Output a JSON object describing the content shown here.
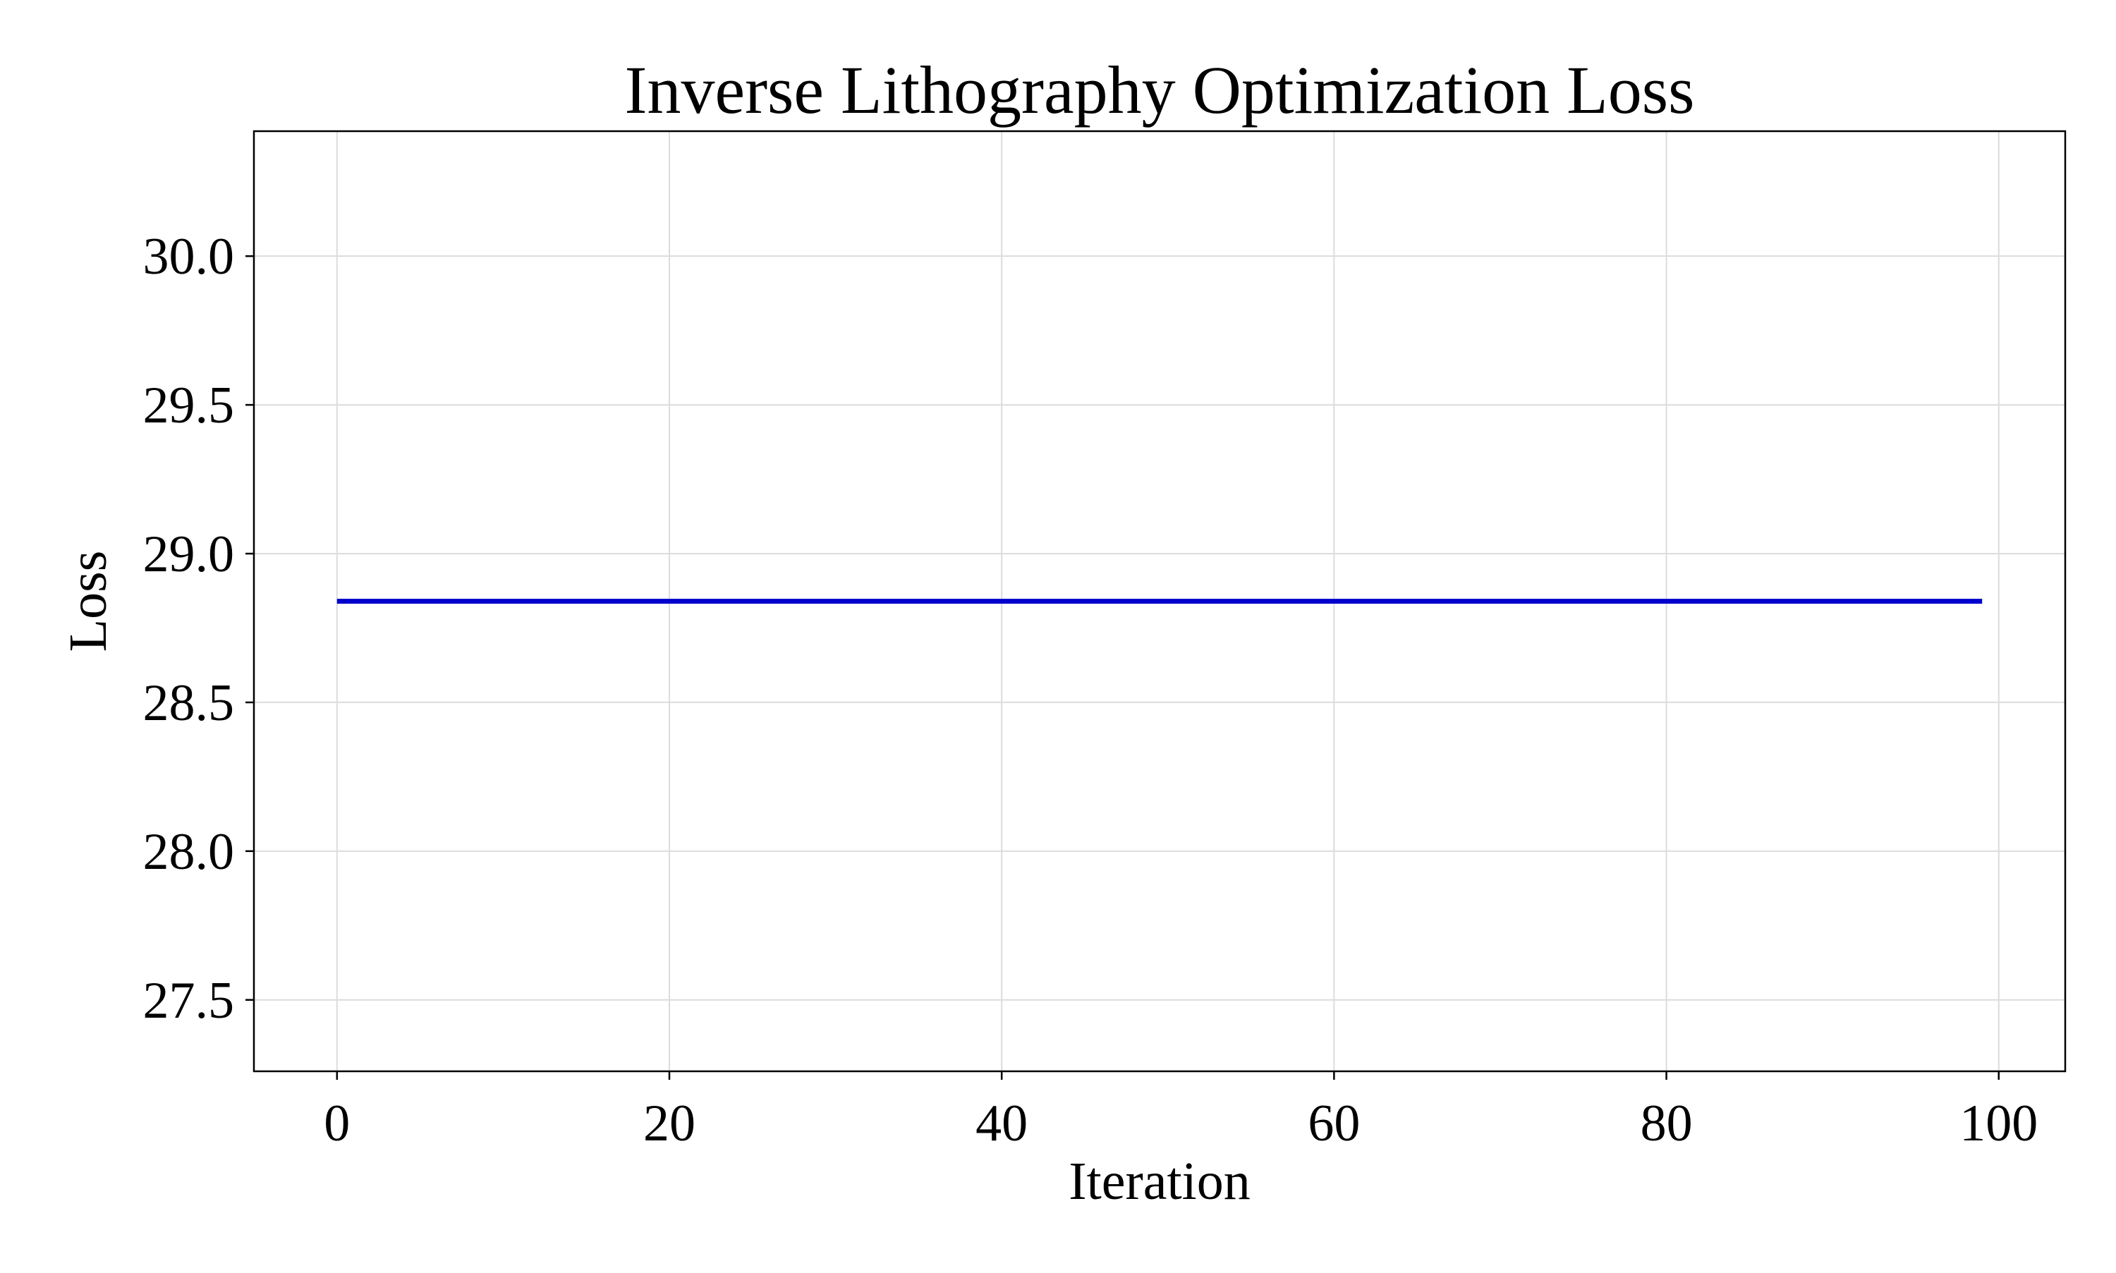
{
  "chart_data": {
    "type": "line",
    "title": "Inverse Lithography Optimization Loss",
    "xlabel": "Iteration",
    "ylabel": "Loss",
    "xlim": [
      -5,
      104
    ],
    "ylim": [
      27.26,
      30.42
    ],
    "xticks": [
      0,
      20,
      40,
      60,
      80,
      100
    ],
    "xtick_labels": [
      "0",
      "20",
      "40",
      "60",
      "80",
      "100"
    ],
    "yticks": [
      27.5,
      28.0,
      28.5,
      29.0,
      29.5,
      30.0
    ],
    "ytick_labels": [
      "27.5",
      "28.0",
      "28.5",
      "29.0",
      "29.5",
      "30.0"
    ],
    "grid": true,
    "legend": "none",
    "series": [
      {
        "x": [
          0,
          99
        ],
        "y": [
          28.84,
          28.84
        ],
        "color": "#0000cc"
      }
    ]
  }
}
